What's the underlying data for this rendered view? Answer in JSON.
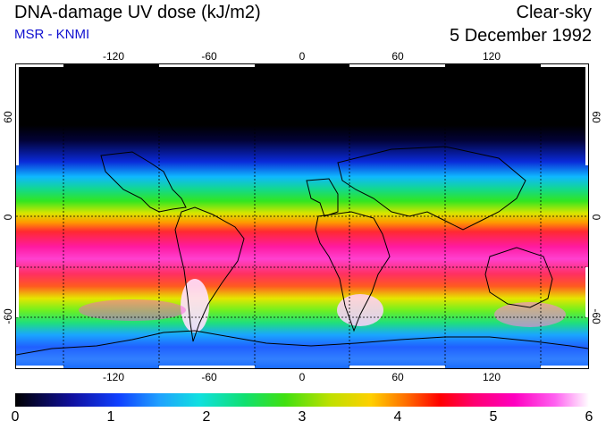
{
  "header": {
    "title": "DNA-damage UV dose (kJ/m2)",
    "source": "MSR - KNMI",
    "condition": "Clear-sky",
    "date": "5 December 1992"
  },
  "map": {
    "longitude_ticks": [
      "-120",
      "-60",
      "0",
      "60",
      "120"
    ],
    "latitude_ticks_left": [
      "60",
      "0",
      "-60"
    ],
    "latitude_ticks_right": [
      "60",
      "0",
      "-60"
    ],
    "lon_range": [
      -180,
      180
    ],
    "lat_range": [
      -90,
      90
    ],
    "graticule_lon": [
      -150,
      -90,
      -30,
      30,
      90,
      150
    ],
    "graticule_lat": [
      -60,
      -30,
      0
    ]
  },
  "colorbar": {
    "ticks": [
      "0",
      "1",
      "2",
      "3",
      "4",
      "5",
      "6"
    ],
    "range": [
      0,
      6
    ]
  }
}
